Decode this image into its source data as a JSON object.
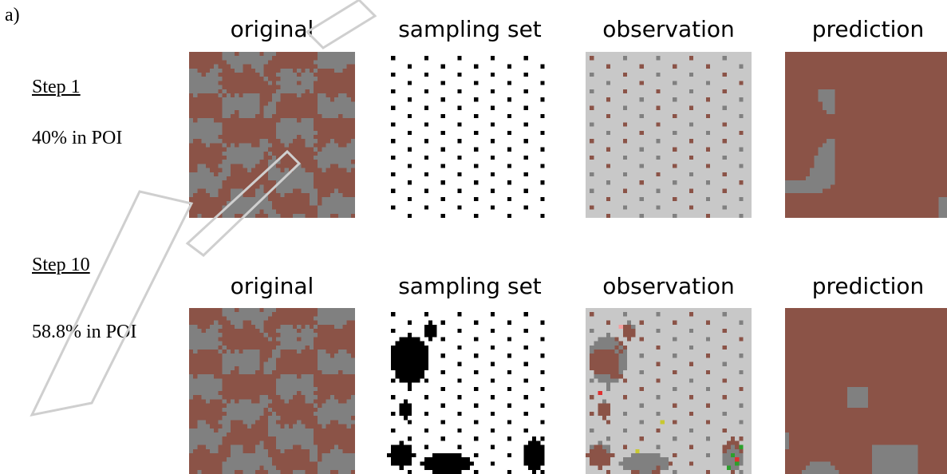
{
  "panel_label": "a)",
  "column_titles": [
    "original",
    "sampling set",
    "observation",
    "prediction"
  ],
  "rows": [
    {
      "step": "Step 1",
      "poi": "40% in POI"
    },
    {
      "step": "Step 10",
      "poi": "58.8% in POI"
    }
  ],
  "colors": {
    "poi": "#8b5347",
    "non_poi": "#808080",
    "unobserved": "#c8c8c8",
    "sample": "#000000",
    "background": "#ffffff",
    "highlight_green": "#2ca02c",
    "highlight_red": "#e03030",
    "highlight_yellow": "#c8c830",
    "highlight_pink": "#f4a0a0",
    "watermark": "#d9d9d9"
  }
}
